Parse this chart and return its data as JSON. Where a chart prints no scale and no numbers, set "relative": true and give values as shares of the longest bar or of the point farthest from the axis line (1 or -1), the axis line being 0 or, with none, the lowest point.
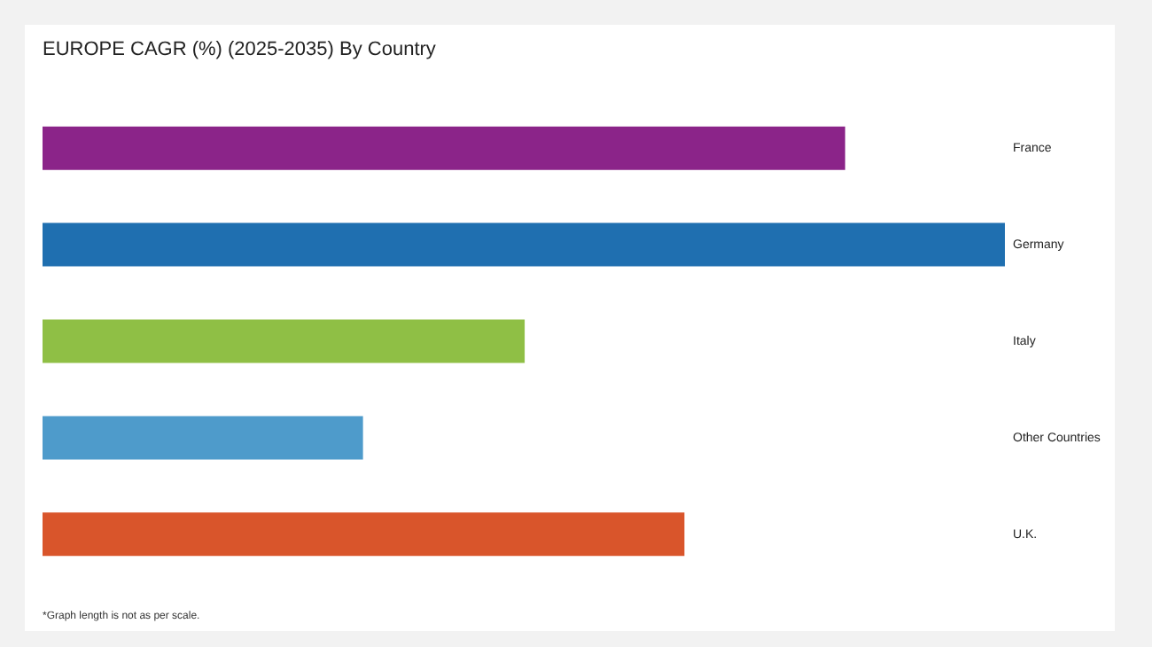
{
  "chart_data": {
    "type": "bar",
    "orientation": "horizontal",
    "relative": true,
    "title": "EUROPE CAGR (%) (2025-2035) By Country",
    "categories": [
      "France",
      "Germany",
      "Italy",
      "Other Countries",
      "U.K."
    ],
    "values": [
      0.834,
      1,
      0.501,
      0.333,
      0.667
    ],
    "colors": [
      "#8b2489",
      "#1f6fb0",
      "#8fbf45",
      "#4e9bcb",
      "#d9552b"
    ],
    "annotations": [
      "*Graph length is not as per scale."
    ],
    "legend": false
  }
}
